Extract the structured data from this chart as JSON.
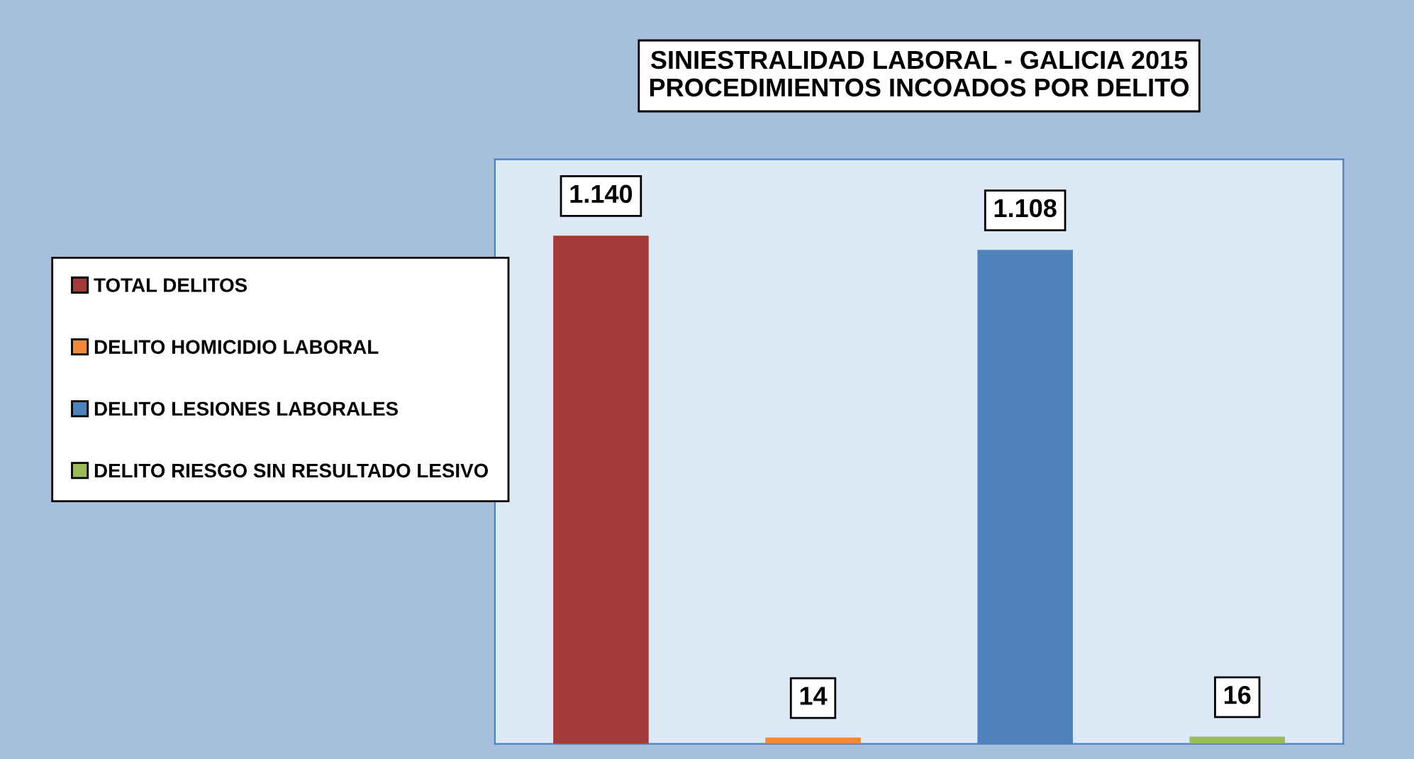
{
  "chart_data": {
    "type": "bar",
    "title": "SINIESTRALIDAD LABORAL - GALICIA 2015\nPROCEDIMIENTOS INCOADOS POR DELITO",
    "categories": [
      null,
      null,
      null,
      null
    ],
    "stacked": true,
    "series": [
      {
        "name": "TOTAL DELITOS",
        "color": "#a33a37",
        "values": [
          1140,
          null,
          null,
          null
        ],
        "value_labels": [
          "1.140",
          null,
          null,
          null
        ]
      },
      {
        "name": "DELITO HOMICIDIO LABORAL",
        "color": "#f0893a",
        "values": [
          null,
          14,
          null,
          null
        ],
        "value_labels": [
          null,
          "14",
          null,
          null
        ]
      },
      {
        "name": "DELITO LESIONES LABORALES",
        "color": "#4f81bd",
        "values": [
          null,
          null,
          1108,
          null
        ],
        "value_labels": [
          null,
          null,
          "1.108",
          null
        ]
      },
      {
        "name": "DELITO RIESGO SIN RESULTADO LESIVO",
        "color": "#9bbb59",
        "values": [
          null,
          null,
          null,
          16
        ],
        "value_labels": [
          null,
          null,
          null,
          "16"
        ]
      }
    ],
    "legend": "left",
    "tick_labels": false,
    "grid": false
  }
}
